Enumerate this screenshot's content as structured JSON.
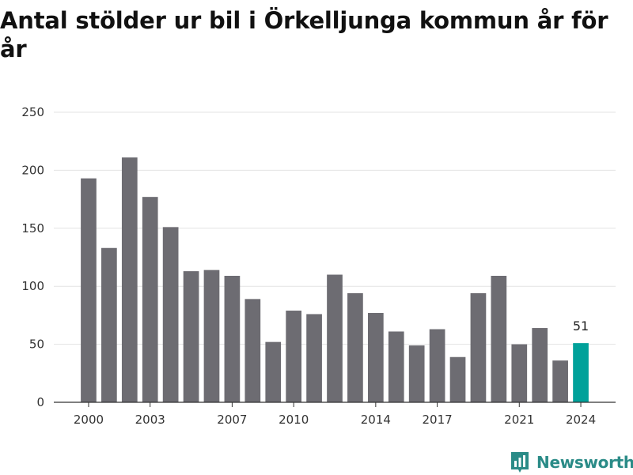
{
  "chart_data": {
    "type": "bar",
    "title": "Antal stölder ur bil i Örkelljunga kommun år för år",
    "x": [
      2000,
      2001,
      2002,
      2003,
      2004,
      2005,
      2006,
      2007,
      2008,
      2009,
      2010,
      2011,
      2012,
      2013,
      2014,
      2015,
      2016,
      2017,
      2018,
      2019,
      2020,
      2021,
      2022,
      2023,
      2024
    ],
    "values": [
      193,
      133,
      211,
      177,
      151,
      113,
      114,
      109,
      89,
      52,
      79,
      76,
      110,
      94,
      77,
      61,
      49,
      63,
      39,
      94,
      109,
      50,
      64,
      36,
      51
    ],
    "xticks": [
      2000,
      2003,
      2007,
      2010,
      2014,
      2017,
      2021,
      2024
    ],
    "yticks": [
      0,
      50,
      100,
      150,
      200,
      250
    ],
    "ylim": [
      0,
      250
    ],
    "xlabel": "",
    "ylabel": "",
    "grid": true,
    "highlight": {
      "x": 2024,
      "label": "51"
    },
    "colors": {
      "bar": "#6d6c72",
      "highlight": "#00a19a",
      "grid": "#e3e3e3",
      "axis": "#333333"
    }
  },
  "brand": {
    "name": "Newsworthy",
    "icon": "newsworthy-logo-icon",
    "color": "#2a8b87"
  }
}
